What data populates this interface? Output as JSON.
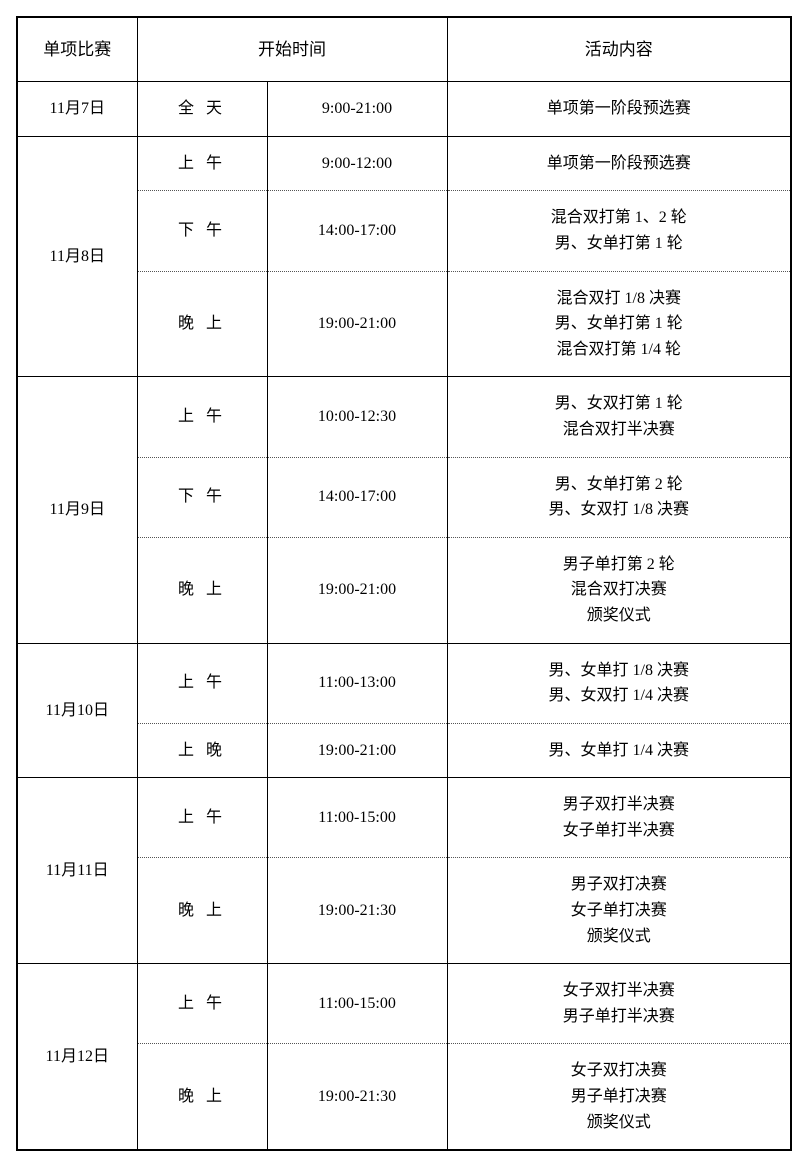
{
  "headers": {
    "event": "单项比赛",
    "start_time": "开始时间",
    "content": "活动内容"
  },
  "columns": {
    "date_width": 120,
    "session_width": 130,
    "time_width": 180
  },
  "colors": {
    "border": "#000000",
    "background": "#ffffff",
    "text": "#000000"
  },
  "typography": {
    "body_fontsize": 16,
    "header_fontsize": 17,
    "line_height": 1.6,
    "font_family": "SimSun"
  },
  "schedule": [
    {
      "date": "11月7日",
      "sessions": [
        {
          "period": "全 天",
          "time": "9:00-21:00",
          "content": [
            "单项第一阶段预选赛"
          ]
        }
      ]
    },
    {
      "date": "11月8日",
      "sessions": [
        {
          "period": "上 午",
          "time": "9:00-12:00",
          "content": [
            "单项第一阶段预选赛"
          ]
        },
        {
          "period": "下 午",
          "time": "14:00-17:00",
          "content": [
            "混合双打第 1、2 轮",
            "男、女单打第 1 轮"
          ]
        },
        {
          "period": "晚 上",
          "time": "19:00-21:00",
          "content": [
            "混合双打 1/8 决赛",
            "男、女单打第 1 轮",
            "混合双打第 1/4 轮"
          ]
        }
      ]
    },
    {
      "date": "11月9日",
      "sessions": [
        {
          "period": "上 午",
          "time": "10:00-12:30",
          "content": [
            "男、女双打第 1 轮",
            "混合双打半决赛"
          ]
        },
        {
          "period": "下 午",
          "time": "14:00-17:00",
          "content": [
            "男、女单打第 2 轮",
            "男、女双打 1/8 决赛"
          ]
        },
        {
          "period": "晚 上",
          "time": "19:00-21:00",
          "content": [
            "男子单打第 2 轮",
            "混合双打决赛",
            "颁奖仪式"
          ]
        }
      ]
    },
    {
      "date": "11月10日",
      "sessions": [
        {
          "period": "上 午",
          "time": "11:00-13:00",
          "content": [
            "男、女单打 1/8 决赛",
            "男、女双打 1/4 决赛"
          ]
        },
        {
          "period": "上 晚",
          "time": "19:00-21:00",
          "content": [
            "男、女单打 1/4 决赛"
          ]
        }
      ]
    },
    {
      "date": "11月11日",
      "sessions": [
        {
          "period": "上 午",
          "time": "11:00-15:00",
          "content": [
            "男子双打半决赛",
            "女子单打半决赛"
          ]
        },
        {
          "period": "晚 上",
          "time": "19:00-21:30",
          "content": [
            "男子双打决赛",
            "女子单打决赛",
            "颁奖仪式"
          ]
        }
      ]
    },
    {
      "date": "11月12日",
      "sessions": [
        {
          "period": "上 午",
          "time": "11:00-15:00",
          "content": [
            "女子双打半决赛",
            "男子单打半决赛"
          ]
        },
        {
          "period": "晚 上",
          "time": "19:00-21:30",
          "content": [
            "女子双打决赛",
            "男子单打决赛",
            "颁奖仪式"
          ]
        }
      ]
    }
  ]
}
